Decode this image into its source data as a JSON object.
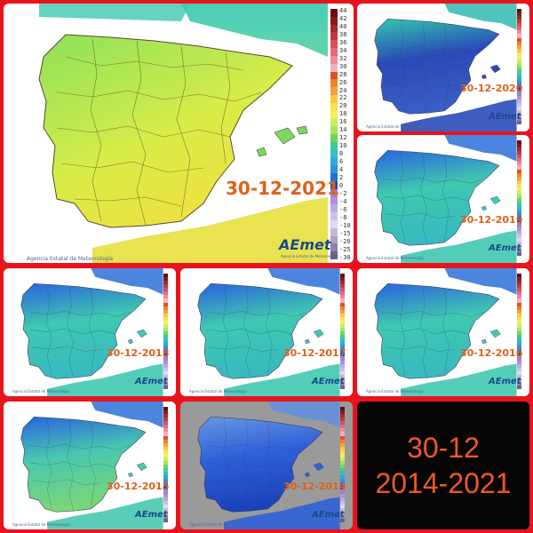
{
  "panels": [
    {
      "id": "p2021",
      "date": "30-12-2021",
      "agency": "Agencia Estatal de Meteorología",
      "theme": "warm"
    },
    {
      "id": "p2020",
      "date": "30-12-2020",
      "agency": "Agencia Estatal de Meteorología",
      "theme": "deep"
    },
    {
      "id": "p2019",
      "date": "30-12-2019",
      "agency": "Agencia Estatal de Meteorología",
      "theme": "cool"
    },
    {
      "id": "p2018",
      "date": "30-12-2018",
      "agency": "Agencia Estatal de Meteorología",
      "theme": "cool"
    },
    {
      "id": "p2017",
      "date": "30-12-2017",
      "agency": "Agencia Estatal de Meteorología",
      "theme": "cool"
    },
    {
      "id": "p2016",
      "date": "30-12-2016",
      "agency": "Agencia Estatal de Meteorología",
      "theme": "cool"
    },
    {
      "id": "p2015",
      "date": "30-12-2015",
      "agency": "Agencia Estatal de Meteorología",
      "theme": "mixed"
    },
    {
      "id": "p2014",
      "date": "30-12-2014",
      "agency": "Agencia Estatal de Meteorología",
      "theme": "cold"
    }
  ],
  "logo_text": "AEmet",
  "logo_subtext": "Agencia Estatal de Meteorología",
  "scale_ticks": [
    "44",
    "42",
    "40",
    "38",
    "36",
    "34",
    "32",
    "30",
    "28",
    "26",
    "24",
    "22",
    "20",
    "18",
    "16",
    "14",
    "12",
    "10",
    "8",
    "6",
    "4",
    "2",
    "0",
    "-2",
    "-4",
    "-6",
    "-8",
    "-10",
    "-15",
    "-20",
    "-25",
    "-30"
  ],
  "scale_colors": [
    "#6a0a0a",
    "#8a1a1a",
    "#a52a2a",
    "#c03c3c",
    "#d8505a",
    "#e86a7a",
    "#f08aa0",
    "#f4b0c0",
    "#e05020",
    "#f08030",
    "#f8a040",
    "#fcc840",
    "#fce050",
    "#f0f060",
    "#c8f060",
    "#a0e860",
    "#70d850",
    "#40c8a0",
    "#30c0c8",
    "#30a8d8",
    "#3090e0",
    "#2070e0",
    "#1050c8",
    "#a080d0",
    "#b090d8",
    "#c0a8e0",
    "#d0c0e8",
    "#e0d8f0",
    "#c8b8d8",
    "#b0a0c8",
    "#9080b0",
    "#706090"
  ],
  "summary": {
    "line1": "30-12",
    "line2": "2014-2021"
  },
  "colors": {
    "frame": "#e8141c",
    "date_label": "#e0601a",
    "summary_bg": "#050505",
    "summary_text": "#f05a1e",
    "sea": "#ffffff",
    "sea_2014": "#9a9a9a"
  }
}
